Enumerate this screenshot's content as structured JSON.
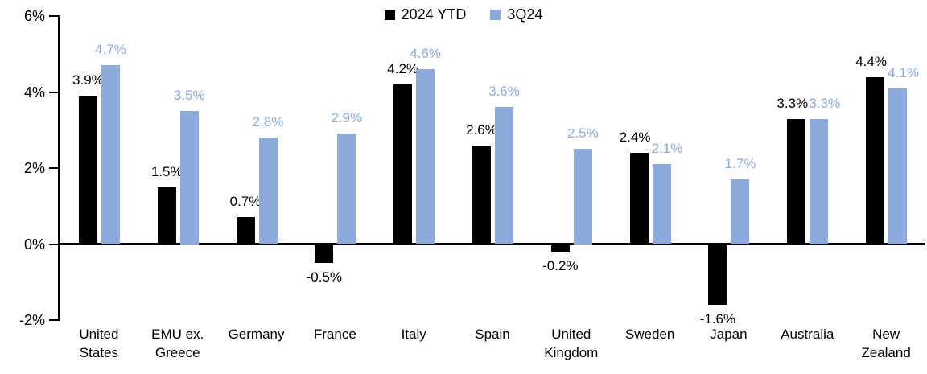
{
  "chart_data": {
    "type": "bar",
    "title": "",
    "categories": [
      "United States",
      "EMU ex. Greece",
      "Germany",
      "France",
      "Italy",
      "Spain",
      "United Kingdom",
      "Sweden",
      "Japan",
      "Australia",
      "New Zealand"
    ],
    "series": [
      {
        "name": "2024 YTD",
        "color": "#000000",
        "values": [
          3.9,
          1.5,
          0.7,
          -0.5,
          4.2,
          2.6,
          -0.2,
          2.4,
          -1.6,
          3.3,
          4.4
        ]
      },
      {
        "name": "3Q24",
        "color": "#8EAADB",
        "values": [
          4.7,
          3.5,
          2.8,
          2.9,
          4.6,
          3.6,
          2.5,
          2.1,
          1.7,
          3.3,
          4.1
        ]
      }
    ],
    "data_labels": {
      "2024 YTD": [
        "3.9%",
        "1.5%",
        "0.7%",
        "-0.5%",
        "4.2%",
        "2.6%",
        "-0.2%",
        "2.4%",
        "-1.6%",
        "3.3%",
        "4.4%"
      ],
      "3Q24": [
        "4.7%",
        "3.5%",
        "2.8%",
        "2.9%",
        "4.6%",
        "3.6%",
        "2.5%",
        "2.1%",
        "1.7%",
        "3.3%",
        "4.1%"
      ]
    },
    "value_suffix": "%",
    "ylim": [
      -2,
      6
    ],
    "yticks": [
      {
        "label": "6%",
        "value": 6
      },
      {
        "label": "4%",
        "value": 4
      },
      {
        "label": "2%",
        "value": 2
      },
      {
        "label": "0%",
        "value": 0
      },
      {
        "label": "-2%",
        "value": -2
      }
    ],
    "legend_position": "top-center",
    "grid": false,
    "axis_color": "#000000",
    "background_color": "#ffffff"
  }
}
